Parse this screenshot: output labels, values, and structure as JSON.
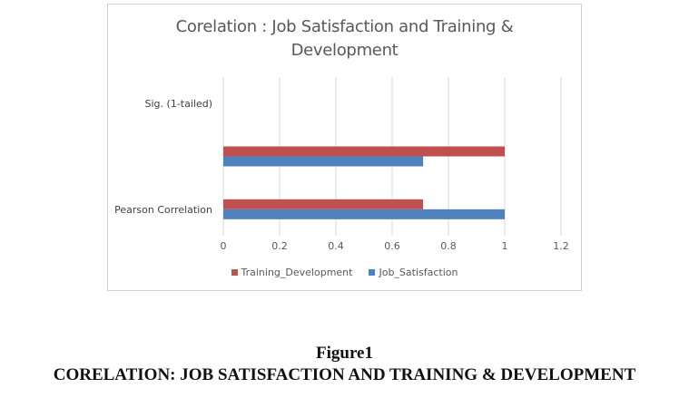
{
  "caption": {
    "figure_number": "Figure1",
    "figure_title": "CORELATION: JOB SATISFACTION AND TRAINING & DEVELOPMENT"
  },
  "chart_data": {
    "type": "bar",
    "orientation": "horizontal",
    "title": "Corelation : Job Satisfaction and Training & Development",
    "categories": [
      "Pearson Correlation",
      "",
      "Sig. (1-tailed)"
    ],
    "series": [
      {
        "name": "Job_Satisfaction",
        "color": "#4f81bd",
        "values": [
          1,
          0.71,
          null
        ]
      },
      {
        "name": "Training_Development",
        "color": "#c0504d",
        "values": [
          0.71,
          1,
          null
        ]
      }
    ],
    "xlim": [
      0,
      1.2
    ],
    "xticks": [
      0,
      0.2,
      0.4,
      0.6,
      0.8,
      1,
      1.2
    ],
    "xtick_labels": [
      "0",
      "0.2",
      "0.4",
      "0.6",
      "0.8",
      "1",
      "1.2"
    ],
    "grid": true,
    "legend_position": "bottom",
    "legend_order": [
      "Training_Development",
      "Job_Satisfaction"
    ]
  }
}
